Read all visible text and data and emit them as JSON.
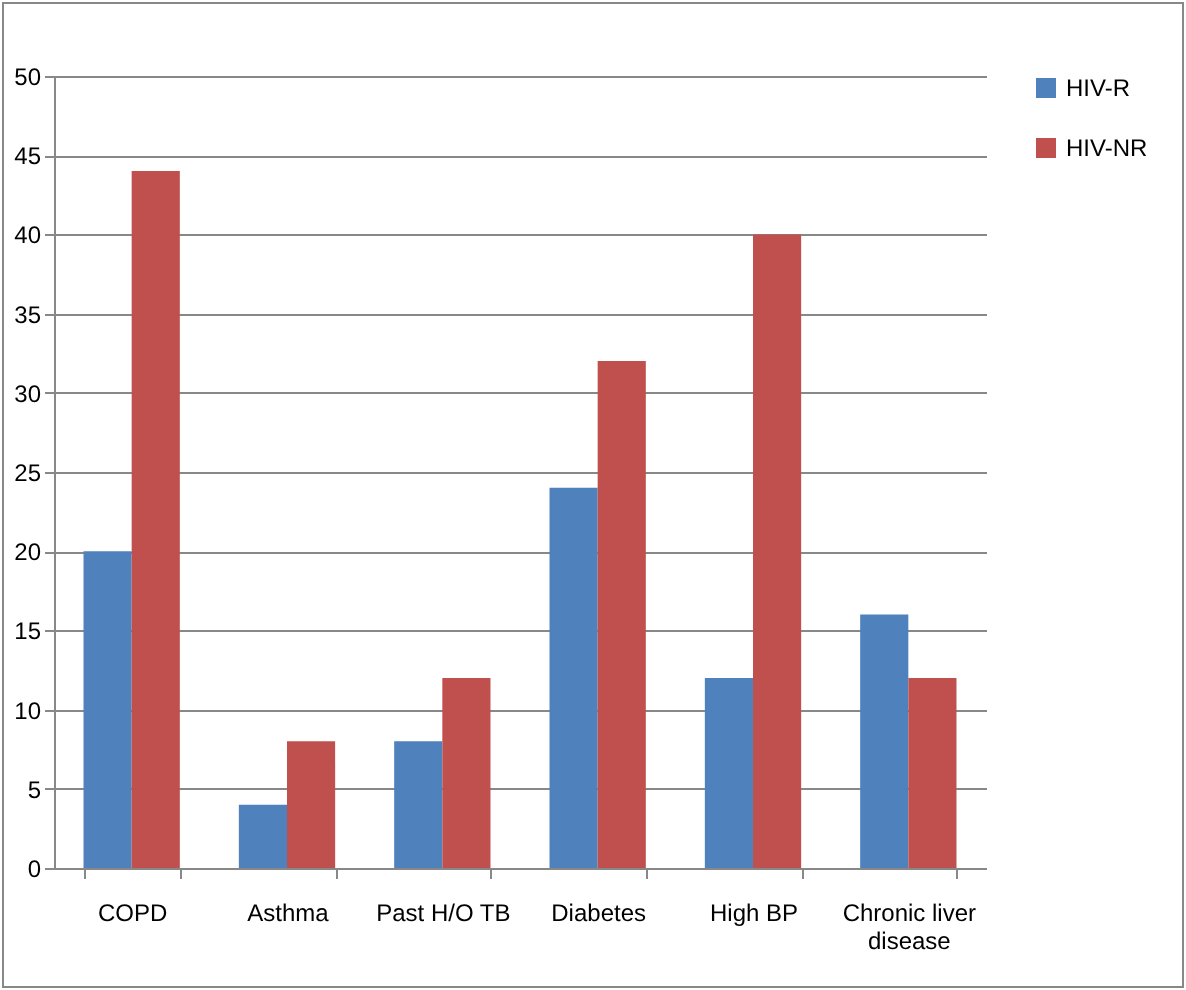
{
  "chart_data": {
    "type": "bar",
    "categories": [
      "COPD",
      "Asthma",
      "Past H/O TB",
      "Diabetes",
      "High BP",
      "Chronic liver disease"
    ],
    "series": [
      {
        "name": "HIV-R",
        "color": "#4f81bd",
        "values": [
          20,
          4,
          8,
          24,
          12,
          16
        ]
      },
      {
        "name": "HIV-NR",
        "color": "#c0504d",
        "values": [
          44,
          8,
          12,
          32,
          40,
          12
        ]
      }
    ],
    "ylim": [
      0,
      50
    ],
    "yticks": [
      0,
      5,
      10,
      15,
      20,
      25,
      30,
      35,
      40,
      45,
      50
    ],
    "grid": "y",
    "legend": "right"
  }
}
